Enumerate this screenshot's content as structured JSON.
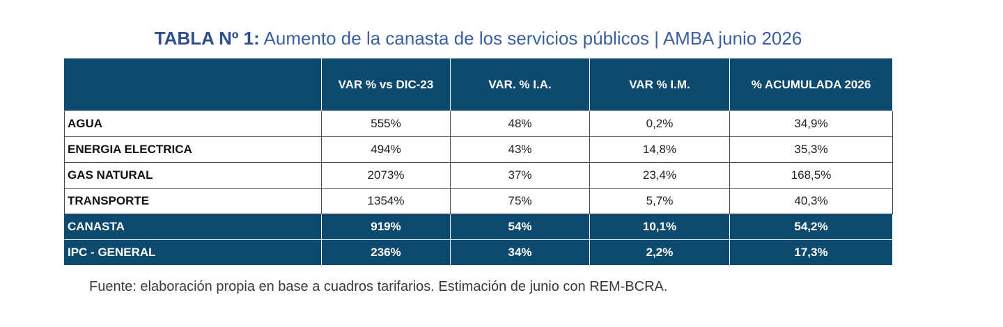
{
  "title": {
    "prefix": "TABLA Nº 1:",
    "text": " Aumento de la canasta de los servicios públicos | AMBA junio 2026"
  },
  "table": {
    "headers": [
      "",
      "VAR % vs DIC-23",
      "VAR. % I.A.",
      "VAR % I.M.",
      "% ACUMULADA 2026"
    ],
    "rows": [
      {
        "label": "AGUA",
        "values": [
          "555%",
          "48%",
          "0,2%",
          "34,9%"
        ]
      },
      {
        "label": "ENERGIA ELECTRICA",
        "values": [
          "494%",
          "43%",
          "14,8%",
          "35,3%"
        ]
      },
      {
        "label": "GAS NATURAL",
        "values": [
          "2073%",
          "37%",
          "23,4%",
          "168,5%"
        ]
      },
      {
        "label": "TRANSPORTE",
        "values": [
          "1354%",
          "75%",
          "5,7%",
          "40,3%"
        ]
      },
      {
        "label": "CANASTA",
        "values": [
          "919%",
          "54%",
          "10,1%",
          "54,2%"
        ]
      },
      {
        "label": "IPC - GENERAL",
        "values": [
          "236%",
          "34%",
          "2,2%",
          "17,3%"
        ]
      }
    ]
  },
  "source": "Fuente: elaboración propia en base a cuadros tarifarios. Estimación de junio con REM-BCRA.",
  "colors": {
    "header_bg": "#0d4a6e",
    "title": "#3b5f9f"
  }
}
